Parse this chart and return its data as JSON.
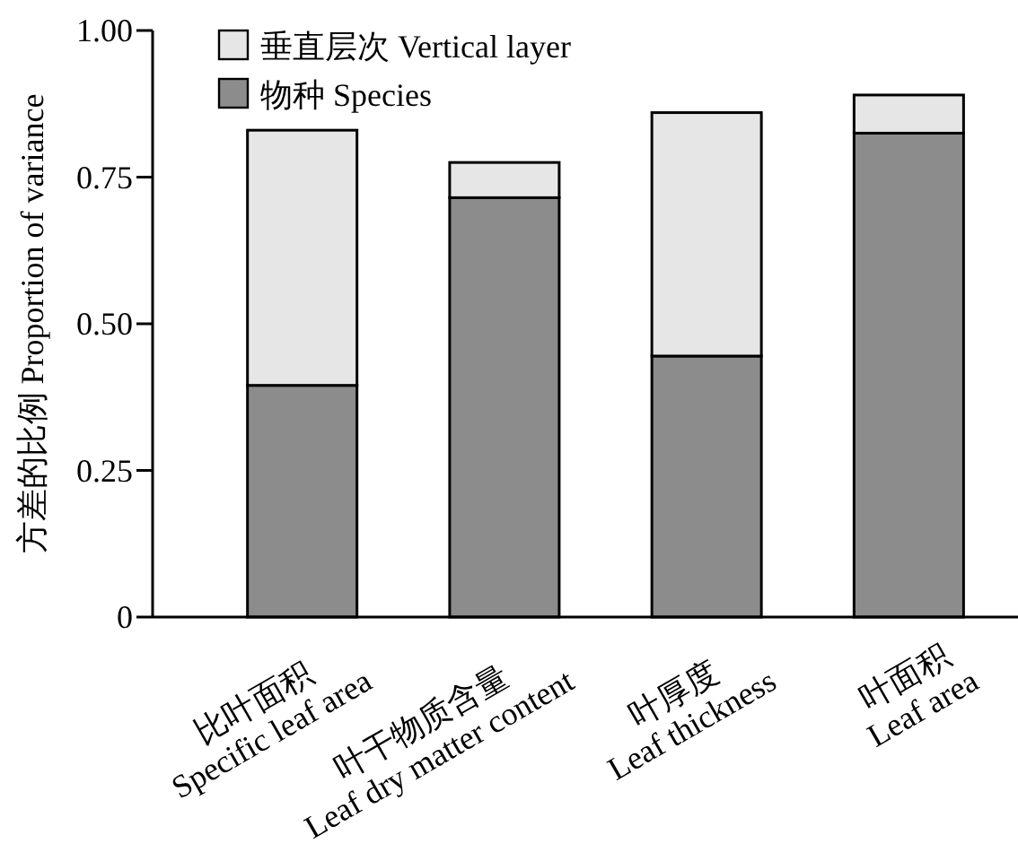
{
  "chart_data": {
    "type": "bar",
    "stacked": true,
    "ylabel": "方差的比例 Proportion of variance",
    "categories": [
      "比叶面积\nSpecific leaf area",
      "叶干物质含量\nLeaf dry matter content",
      "叶厚度\nLeaf thickness",
      "叶面积\nLeaf area"
    ],
    "series": [
      {
        "name": "物种 Species",
        "color": "#8c8c8c",
        "values": [
          0.395,
          0.715,
          0.445,
          0.825
        ]
      },
      {
        "name": "垂直层次 Vertical layer",
        "color": "#e6e6e6",
        "values": [
          0.435,
          0.06,
          0.415,
          0.065
        ]
      }
    ],
    "ylim": [
      0,
      1
    ],
    "yticks": [
      0,
      0.25,
      {
        "value": 0.5,
        "label": "0.50"
      },
      0.75,
      {
        "value": 1,
        "label": "1.00"
      }
    ],
    "legend": "top left",
    "grid": false
  }
}
